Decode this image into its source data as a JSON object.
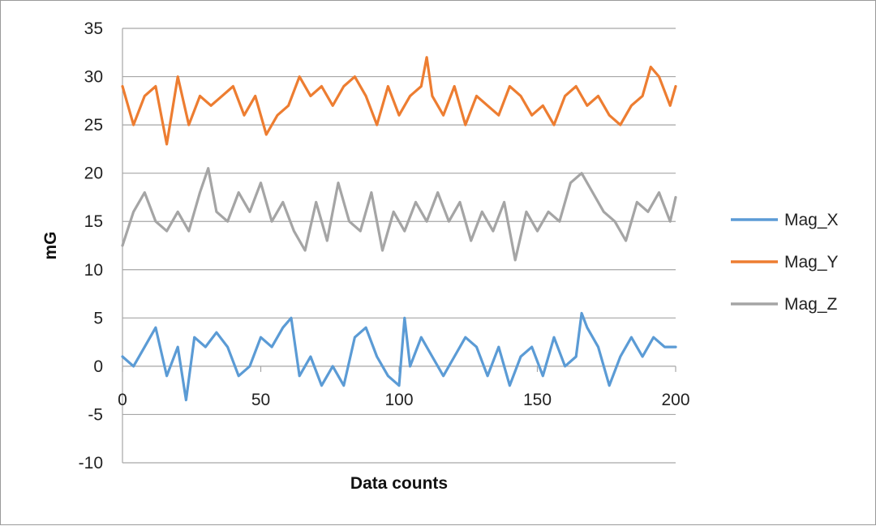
{
  "chart_data": {
    "type": "line",
    "title": "",
    "xlabel": "Data counts",
    "ylabel": "mG",
    "xlim": [
      0,
      200
    ],
    "ylim": [
      -10,
      35
    ],
    "x_ticks": [
      0,
      50,
      100,
      150,
      200
    ],
    "y_ticks": [
      -10,
      -5,
      0,
      5,
      10,
      15,
      20,
      25,
      30,
      35
    ],
    "grid": "horizontal",
    "legend_position": "right",
    "series": [
      {
        "name": "Mag_X",
        "color": "#5b9bd5",
        "x": [
          0,
          4,
          8,
          12,
          16,
          20,
          23,
          26,
          30,
          34,
          38,
          42,
          46,
          50,
          54,
          58,
          61,
          64,
          68,
          72,
          76,
          80,
          84,
          88,
          92,
          96,
          100,
          102,
          104,
          108,
          112,
          116,
          120,
          124,
          128,
          132,
          136,
          140,
          144,
          148,
          152,
          156,
          160,
          164,
          166,
          168,
          172,
          176,
          180,
          184,
          188,
          192,
          196,
          200
        ],
        "values": [
          1,
          0,
          2,
          4,
          -1,
          2,
          -3.5,
          3,
          2,
          3.5,
          2,
          -1,
          0,
          3,
          2,
          4,
          5,
          -1,
          1,
          -2,
          0,
          -2,
          3,
          4,
          1,
          -1,
          -2,
          5,
          0,
          3,
          1,
          -1,
          1,
          3,
          2,
          -1,
          2,
          -2,
          1,
          2,
          -1,
          3,
          0,
          1,
          5.5,
          4,
          2,
          -2,
          1,
          3,
          1,
          3,
          2,
          2
        ]
      },
      {
        "name": "Mag_Y",
        "color": "#ed7d31",
        "x": [
          0,
          4,
          8,
          12,
          16,
          20,
          24,
          28,
          32,
          36,
          40,
          44,
          48,
          52,
          56,
          60,
          64,
          68,
          72,
          76,
          80,
          84,
          88,
          92,
          96,
          100,
          104,
          108,
          110,
          112,
          116,
          120,
          124,
          128,
          132,
          136,
          140,
          144,
          148,
          152,
          156,
          160,
          164,
          168,
          172,
          176,
          180,
          184,
          188,
          191,
          194,
          198,
          200
        ],
        "values": [
          29,
          25,
          28,
          29,
          23,
          30,
          25,
          28,
          27,
          28,
          29,
          26,
          28,
          24,
          26,
          27,
          30,
          28,
          29,
          27,
          29,
          30,
          28,
          25,
          29,
          26,
          28,
          29,
          32,
          28,
          26,
          29,
          25,
          28,
          27,
          26,
          29,
          28,
          26,
          27,
          25,
          28,
          29,
          27,
          28,
          26,
          25,
          27,
          28,
          31,
          30,
          27,
          29
        ]
      },
      {
        "name": "Mag_Z",
        "color": "#a5a5a5",
        "x": [
          0,
          4,
          8,
          12,
          16,
          20,
          24,
          28,
          31,
          34,
          38,
          42,
          46,
          50,
          54,
          58,
          62,
          66,
          70,
          74,
          78,
          82,
          86,
          90,
          94,
          98,
          102,
          106,
          110,
          114,
          118,
          122,
          126,
          130,
          134,
          138,
          142,
          146,
          150,
          154,
          158,
          162,
          166,
          170,
          174,
          178,
          182,
          186,
          190,
          194,
          198,
          200
        ],
        "values": [
          12.5,
          16,
          18,
          15,
          14,
          16,
          14,
          18,
          20.5,
          16,
          15,
          18,
          16,
          19,
          15,
          17,
          14,
          12,
          17,
          13,
          19,
          15,
          14,
          18,
          12,
          16,
          14,
          17,
          15,
          18,
          15,
          17,
          13,
          16,
          14,
          17,
          11,
          16,
          14,
          16,
          15,
          19,
          20,
          18,
          16,
          15,
          13,
          17,
          16,
          18,
          15,
          17.5
        ]
      }
    ]
  }
}
